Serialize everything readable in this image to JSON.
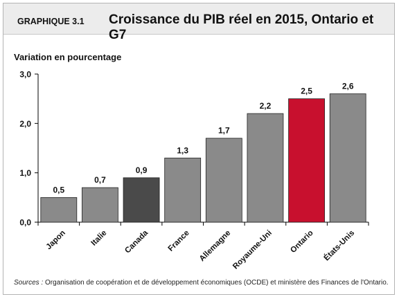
{
  "figure": {
    "label": "GRAPHIQUE 3.1",
    "title": "Croissance du PIB réel en 2015, Ontario et G7"
  },
  "chart_data": {
    "type": "bar",
    "title": "Croissance du PIB réel en 2015, Ontario et G7",
    "xlabel": "",
    "ylabel": "Variation en pourcentage",
    "categories": [
      "Japon",
      "Italie",
      "Canada",
      "France",
      "Allemagne",
      "Royaume-Uni",
      "Ontario",
      "États-Unis"
    ],
    "values": [
      0.5,
      0.7,
      0.9,
      1.3,
      1.7,
      2.2,
      2.5,
      2.6
    ],
    "value_labels": [
      "0,5",
      "0,7",
      "0,9",
      "1,3",
      "1,7",
      "2,2",
      "2,5",
      "2,6"
    ],
    "ylim": [
      0,
      3
    ],
    "yticks": [
      0,
      1,
      2,
      3
    ],
    "ytick_labels": [
      "0,0",
      "1,0",
      "2,0",
      "3,0"
    ],
    "bar_colors": [
      "#8a8a8a",
      "#8a8a8a",
      "#4a4a4a",
      "#8a8a8a",
      "#8a8a8a",
      "#8a8a8a",
      "#c8102e",
      "#8a8a8a"
    ],
    "grid": false,
    "legend": "none"
  },
  "sources": {
    "lead": "Sources :",
    "text": "Organisation de coopération et de développement économiques (OCDE) et ministère des Finances de l'Ontario."
  }
}
